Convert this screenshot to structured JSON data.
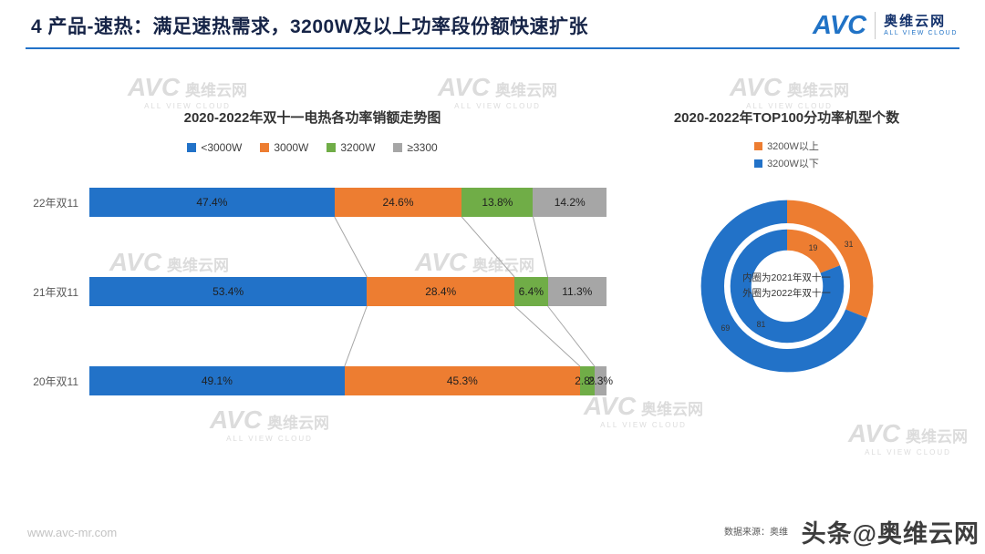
{
  "header": {
    "title": "4 产品-速热：满足速热需求，3200W及以上功率段份额快速扩张"
  },
  "logo": {
    "brand": "AVC",
    "name_cn": "奥维云网",
    "name_en": "ALL VIEW CLOUD"
  },
  "watermark_text": {
    "brand": "AVC",
    "cn": "奥维云网",
    "en": "ALL VIEW CLOUD"
  },
  "chart_data": [
    {
      "type": "bar",
      "subtype": "horizontal-stacked",
      "title": "2020-2022年双十一电热各功率销额走势图",
      "categories": [
        "22年双11",
        "21年双11",
        "20年双11"
      ],
      "series": [
        {
          "name": "<3000W",
          "color": "#2272C8",
          "values": [
            47.4,
            53.4,
            49.1
          ]
        },
        {
          "name": "3000W",
          "color": "#ED7D31",
          "values": [
            24.6,
            28.4,
            45.3
          ]
        },
        {
          "name": "3200W",
          "color": "#70AD47",
          "values": [
            13.8,
            6.4,
            2.8
          ]
        },
        {
          "name": "≥3300",
          "color": "#A6A6A6",
          "values": [
            14.2,
            11.3,
            2.3
          ]
        }
      ],
      "value_suffix": "%",
      "legend_position": "top",
      "grid": false
    },
    {
      "type": "pie",
      "subtype": "double-donut",
      "title": "2020-2022年TOP100分功率机型个数",
      "legend": [
        {
          "label": "3200W以上",
          "color": "#ED7D31"
        },
        {
          "label": "3200W以下",
          "color": "#2272C8"
        }
      ],
      "center_text": [
        "内圈为2021年双十一",
        "外圈为2022年双十一"
      ],
      "rings": [
        {
          "name": "inner",
          "year": "2021双十一",
          "values": [
            {
              "label": "3200W以上",
              "value": 19
            },
            {
              "label": "3200W以下",
              "value": 81
            }
          ]
        },
        {
          "name": "outer",
          "year": "2022双十一",
          "values": [
            {
              "label": "3200W以上",
              "value": 31
            },
            {
              "label": "3200W以下",
              "value": 69
            }
          ]
        }
      ]
    }
  ],
  "footer": {
    "website": "www.avc-mr.com",
    "data_source": "数据来源：奥维",
    "watermark": "头条@奥维云网"
  },
  "colors": {
    "accent_blue": "#2272C8",
    "orange": "#ED7D31",
    "green": "#70AD47",
    "gray": "#A6A6A6",
    "title_navy": "#162447"
  }
}
